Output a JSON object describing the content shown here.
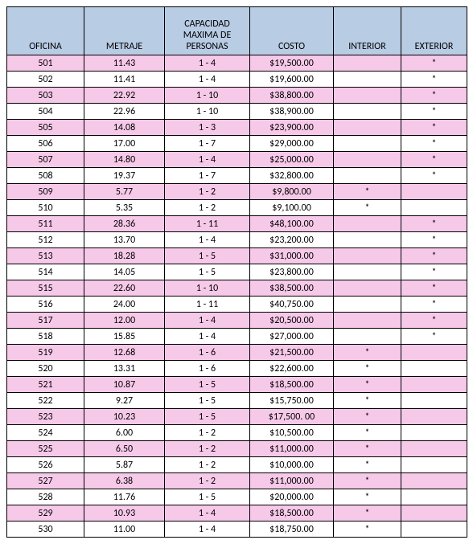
{
  "table": {
    "columns": [
      "OFICINA",
      "METRAJE",
      "CAPACIDAD MAXIMA DE PERSONAS",
      "COSTO",
      "INTERIOR",
      "EXTERIOR"
    ],
    "header_bg": "#b8cce4",
    "row_colors": {
      "pink": "#f7c9e8",
      "white": "#ffffff"
    },
    "border_color": "#000000",
    "fontsize": 12,
    "rows": [
      {
        "shade": "pink",
        "oficina": "501",
        "metraje": "11.43",
        "capacidad": "1 - 4",
        "costo": "$19,500.00",
        "interior": "",
        "exterior": "*"
      },
      {
        "shade": "white",
        "oficina": "502",
        "metraje": "11.41",
        "capacidad": "1 - 4",
        "costo": "$19,600.00",
        "interior": "",
        "exterior": "*"
      },
      {
        "shade": "pink",
        "oficina": "503",
        "metraje": "22.92",
        "capacidad": "1 - 10",
        "costo": "$38,800.00",
        "interior": "",
        "exterior": "*"
      },
      {
        "shade": "white",
        "oficina": "504",
        "metraje": "22.96",
        "capacidad": "1 - 10",
        "costo": "$38,900.00",
        "interior": "",
        "exterior": "*"
      },
      {
        "shade": "pink",
        "oficina": "505",
        "metraje": "14.08",
        "capacidad": "1 - 3",
        "costo": "$23,900.00",
        "interior": "",
        "exterior": "*"
      },
      {
        "shade": "white",
        "oficina": "506",
        "metraje": "17.00",
        "capacidad": "1 - 7",
        "costo": "$29,000.00",
        "interior": "",
        "exterior": "*"
      },
      {
        "shade": "pink",
        "oficina": "507",
        "metraje": "14.80",
        "capacidad": "1 - 4",
        "costo": "$25,000.00",
        "interior": "",
        "exterior": "*"
      },
      {
        "shade": "white",
        "oficina": "508",
        "metraje": "19.37",
        "capacidad": "1 - 7",
        "costo": "$32,800.00",
        "interior": "",
        "exterior": "*"
      },
      {
        "shade": "pink",
        "oficina": "509",
        "metraje": "5.77",
        "capacidad": "1 - 2",
        "costo": "$9,800.00",
        "interior": "*",
        "exterior": ""
      },
      {
        "shade": "white",
        "oficina": "510",
        "metraje": "5.35",
        "capacidad": "1 - 2",
        "costo": "$9,100.00",
        "interior": "*",
        "exterior": ""
      },
      {
        "shade": "pink",
        "oficina": "511",
        "metraje": "28.36",
        "capacidad": "1 - 11",
        "costo": "$48,100.00",
        "interior": "",
        "exterior": "*"
      },
      {
        "shade": "white",
        "oficina": "512",
        "metraje": "13.70",
        "capacidad": "1 - 4",
        "costo": "$23,200.00",
        "interior": "",
        "exterior": "*"
      },
      {
        "shade": "pink",
        "oficina": "513",
        "metraje": "18.28",
        "capacidad": "1 - 5",
        "costo": "$31,000.00",
        "interior": "",
        "exterior": "*"
      },
      {
        "shade": "white",
        "oficina": "514",
        "metraje": "14.05",
        "capacidad": "1 - 5",
        "costo": "$23,800.00",
        "interior": "",
        "exterior": "*"
      },
      {
        "shade": "pink",
        "oficina": "515",
        "metraje": "22.60",
        "capacidad": "1 - 10",
        "costo": "$38,500.00",
        "interior": "",
        "exterior": "*"
      },
      {
        "shade": "white",
        "oficina": "516",
        "metraje": "24.00",
        "capacidad": "1 - 11",
        "costo": "$40,750.00",
        "interior": "",
        "exterior": "*"
      },
      {
        "shade": "pink",
        "oficina": "517",
        "metraje": "12.00",
        "capacidad": "1 - 4",
        "costo": "$20,500.00",
        "interior": "",
        "exterior": "*"
      },
      {
        "shade": "white",
        "oficina": "518",
        "metraje": "15.85",
        "capacidad": "1 - 4",
        "costo": "$27,000.00",
        "interior": "",
        "exterior": "*"
      },
      {
        "shade": "pink",
        "oficina": "519",
        "metraje": "12.68",
        "capacidad": "1 - 6",
        "costo": "$21,500.00",
        "interior": "*",
        "exterior": ""
      },
      {
        "shade": "white",
        "oficina": "520",
        "metraje": "13.31",
        "capacidad": "1 - 6",
        "costo": "$22,600.00",
        "interior": "*",
        "exterior": ""
      },
      {
        "shade": "pink",
        "oficina": "521",
        "metraje": "10.87",
        "capacidad": "1 - 5",
        "costo": "$18,500.00",
        "interior": "*",
        "exterior": ""
      },
      {
        "shade": "white",
        "oficina": "522",
        "metraje": "9.27",
        "capacidad": "1 - 5",
        "costo": "$15,750.00",
        "interior": "*",
        "exterior": ""
      },
      {
        "shade": "pink",
        "oficina": "523",
        "metraje": "10.23",
        "capacidad": "1 - 5",
        "costo": "$17,500. 00",
        "interior": "*",
        "exterior": ""
      },
      {
        "shade": "white",
        "oficina": "524",
        "metraje": "6.00",
        "capacidad": "1 - 2",
        "costo": "$10,500.00",
        "interior": "*",
        "exterior": ""
      },
      {
        "shade": "pink",
        "oficina": "525",
        "metraje": "6.50",
        "capacidad": "1 - 2",
        "costo": "$11,000.00",
        "interior": "*",
        "exterior": ""
      },
      {
        "shade": "white",
        "oficina": "526",
        "metraje": "5.87",
        "capacidad": "1 - 2",
        "costo": "$10,000.00",
        "interior": "*",
        "exterior": ""
      },
      {
        "shade": "pink",
        "oficina": "527",
        "metraje": "6.38",
        "capacidad": "1 - 2",
        "costo": "$11,000.00",
        "interior": "*",
        "exterior": ""
      },
      {
        "shade": "white",
        "oficina": "528",
        "metraje": "11.76",
        "capacidad": "1 - 5",
        "costo": "$20,000.00",
        "interior": "*",
        "exterior": ""
      },
      {
        "shade": "pink",
        "oficina": "529",
        "metraje": "10.93",
        "capacidad": "1 - 4",
        "costo": "$18,500.00",
        "interior": "*",
        "exterior": ""
      },
      {
        "shade": "white",
        "oficina": "530",
        "metraje": "11.00",
        "capacidad": "1 - 4",
        "costo": "$18,750.00",
        "interior": "*",
        "exterior": ""
      }
    ]
  }
}
